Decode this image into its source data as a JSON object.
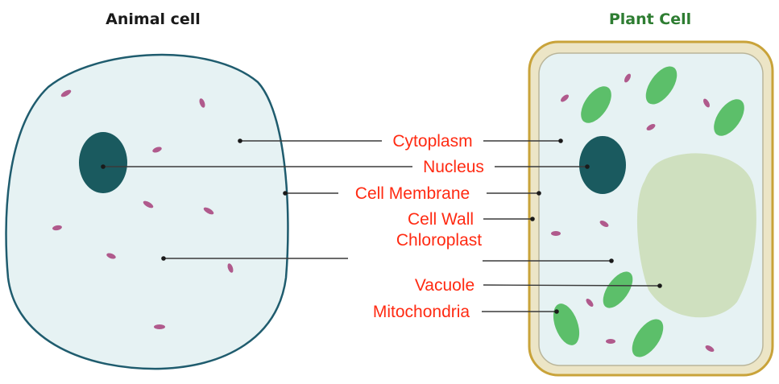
{
  "animal_title": "Animal cell",
  "plant_title": "Plant Cell",
  "labels": {
    "cytoplasm": "Cytoplasm",
    "nucleus": "Nucleus",
    "cell_membrane": "Cell Membrane",
    "cell_wall": "Cell Wall",
    "chloroplast": "Chloroplast",
    "vacuole": "Vacuole",
    "mitochondria": "Mitochondria"
  },
  "colors": {
    "label_text": "#ff2a12",
    "plant_title": "#2e7d32",
    "animal_title": "#1a1a1a",
    "cell_fill": "#e6f2f3",
    "membrane_stroke": "#1f5c6e",
    "nucleus": "#1a5a5f",
    "cell_wall": "#c9a33a",
    "chloroplast": "#5cbf6a",
    "vacuole": "#cfe0bf",
    "mitochondria": "#b05a8c",
    "leader_line": "#3a3a3a"
  }
}
